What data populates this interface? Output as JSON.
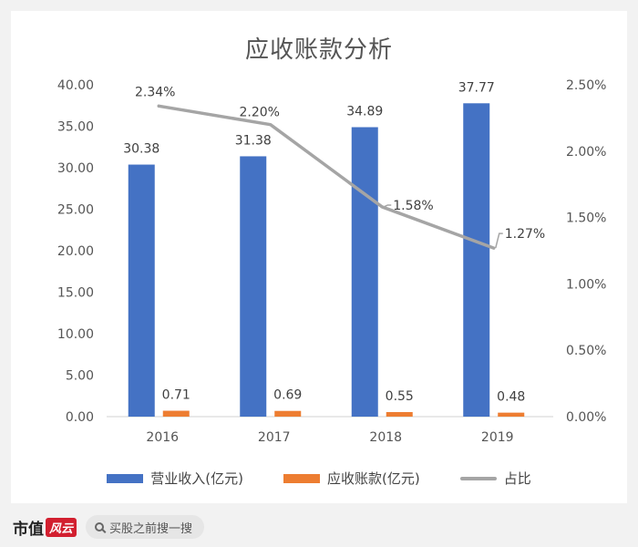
{
  "chart_data": {
    "type": "bar",
    "title": "应收账款分析",
    "categories": [
      "2016",
      "2017",
      "2018",
      "2019"
    ],
    "series": [
      {
        "name": "营业收入(亿元)",
        "type": "bar",
        "axis": "left",
        "color": "#4472c4",
        "values": [
          30.38,
          31.38,
          34.89,
          37.77
        ],
        "labels": [
          "30.38",
          "31.38",
          "34.89",
          "37.77"
        ]
      },
      {
        "name": "应收账款(亿元)",
        "type": "bar",
        "axis": "left",
        "color": "#ed7d31",
        "values": [
          0.71,
          0.69,
          0.55,
          0.48
        ],
        "labels": [
          "0.71",
          "0.69",
          "0.55",
          "0.48"
        ]
      },
      {
        "name": "占比",
        "type": "line",
        "axis": "right",
        "color": "#a5a5a5",
        "values": [
          2.34,
          2.2,
          1.58,
          1.27
        ],
        "labels": [
          "2.34%",
          "2.20%",
          "1.58%",
          "1.27%"
        ]
      }
    ],
    "y_left": {
      "ylim": [
        0,
        40
      ],
      "ticks": [
        0,
        5,
        10,
        15,
        20,
        25,
        30,
        35,
        40
      ],
      "tick_labels": [
        "0.00",
        "5.00",
        "10.00",
        "15.00",
        "20.00",
        "25.00",
        "30.00",
        "35.00",
        "40.00"
      ]
    },
    "y_right": {
      "ylim": [
        0,
        2.5
      ],
      "ticks": [
        0,
        0.5,
        1,
        1.5,
        2,
        2.5
      ],
      "tick_labels": [
        "0.00%",
        "0.50%",
        "1.00%",
        "1.50%",
        "2.00%",
        "2.50%"
      ]
    },
    "grid": false,
    "legend": "bottom"
  },
  "footer": {
    "brand": "市值",
    "brand_mark": "风云",
    "search_placeholder": "买股之前搜一搜"
  }
}
